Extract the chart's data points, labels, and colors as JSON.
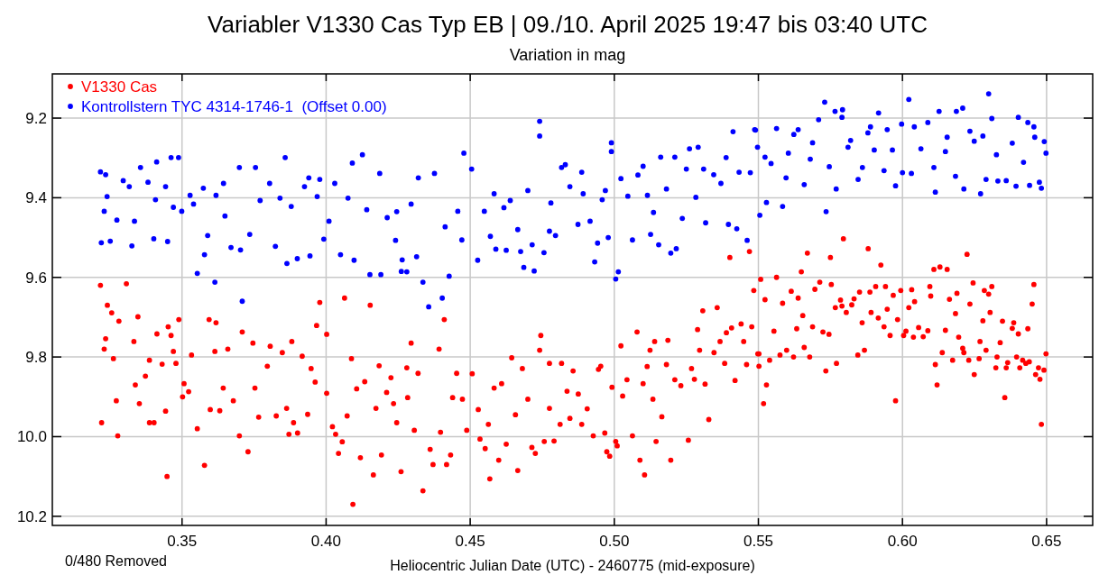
{
  "chart_data": {
    "type": "scatter",
    "title": "Variabler V1330 Cas Typ EB | 09./10. April 2025 19:47 bis 03:40 UTC",
    "subtitle": "Variation in mag",
    "xlabel": "Heliocentric Julian Date (UTC) - 2460775 (mid-exposure)",
    "annotations": [
      "0/480 Removed"
    ],
    "xlim": [
      0.305,
      0.666
    ],
    "xticks": [
      0.35,
      {
        "value": 0.4,
        "label": "0.40"
      },
      0.45,
      {
        "value": 0.5,
        "label": "0.50"
      },
      0.55,
      {
        "value": 0.6,
        "label": "0.60"
      },
      0.65
    ],
    "ylim": [
      10.223,
      9.089
    ],
    "yticks": [
      9.2,
      9.4,
      9.6,
      9.8,
      {
        "value": 10,
        "label": "10.0"
      },
      10.2
    ],
    "grid": true,
    "legend": "top left",
    "marker": "circle",
    "series": [
      {
        "name": "V1330 Cas",
        "color": "#ff0000",
        "x": [
          0.3217,
          0.3221,
          0.3307,
          0.3241,
          0.3256,
          0.3235,
          0.323,
          0.3262,
          0.3281,
          0.3272,
          0.3277,
          0.3333,
          0.3347,
          0.3338,
          0.3352,
          0.3373,
          0.3387,
          0.3387,
          0.3403,
          0.3413,
          0.3431,
          0.3448,
          0.3452,
          0.3462,
          0.347,
          0.3479,
          0.3489,
          0.3443,
          0.3502,
          0.3507,
          0.3523,
          0.3533,
          0.3553,
          0.3578,
          0.3594,
          0.3618,
          0.3614,
          0.3598,
          0.3631,
          0.3643,
          0.3659,
          0.3678,
          0.3699,
          0.3709,
          0.3729,
          0.3746,
          0.3753,
          0.3766,
          0.3796,
          0.3806,
          0.3827,
          0.3848,
          0.3863,
          0.3871,
          0.3881,
          0.3887,
          0.3901,
          0.3917,
          0.3936,
          0.3948,
          0.3962,
          0.3967,
          0.3978,
          0.4002,
          0.4002,
          0.4022,
          0.4033,
          0.4043,
          0.4056,
          0.4064,
          0.4073,
          0.4088,
          0.4093,
          0.4106,
          0.4119,
          0.4134,
          0.4153,
          0.4164,
          0.4173,
          0.4184,
          0.4192,
          0.421,
          0.4225,
          0.4234,
          0.4245,
          0.426,
          0.4283,
          0.4295,
          0.428,
          0.4306,
          0.4319,
          0.4336,
          0.4361,
          0.4371,
          0.4392,
          0.4397,
          0.441,
          0.4418,
          0.4432,
          0.4439,
          0.4453,
          0.4473,
          0.4488,
          0.4507,
          0.4528,
          0.4534,
          0.4552,
          0.4563,
          0.4568,
          0.4583,
          0.4599,
          0.4609,
          0.4625,
          0.4644,
          0.4657,
          0.4665,
          0.4681,
          0.47,
          0.4714,
          0.4726,
          0.4741,
          0.4745,
          0.4757,
          0.4775,
          0.4775,
          0.4791,
          0.4812,
          0.4817,
          0.4836,
          0.4846,
          0.4857,
          0.4875,
          0.4887,
          0.4906,
          0.4927,
          0.4945,
          0.4953,
          0.4967,
          0.4974,
          0.4984,
          0.4992,
          0.5005,
          0.501,
          0.5023,
          0.5029,
          0.5044,
          0.5063,
          0.5079,
          0.5089,
          0.51,
          0.5105,
          0.5114,
          0.5124,
          0.5134,
          0.514,
          0.5145,
          0.5165,
          0.5181,
          0.5186,
          0.5196,
          0.521,
          0.5231,
          0.5257,
          0.5268,
          0.5278,
          0.5289,
          0.5296,
          0.5307,
          0.5315,
          0.5328,
          0.5346,
          0.5357,
          0.5367,
          0.5383,
          0.5389,
          0.5401,
          0.5407,
          0.5419,
          0.544,
          0.5449,
          0.5459,
          0.5469,
          0.5477,
          0.5484,
          0.5498,
          0.5502,
          0.5502,
          0.5508,
          0.5518,
          0.5528,
          0.5523,
          0.5539,
          0.5554,
          0.5563,
          0.5575,
          0.5584,
          0.5598,
          0.5614,
          0.5622,
          0.5633,
          0.5638,
          0.5649,
          0.5654,
          0.5659,
          0.567,
          0.5678,
          0.5688,
          0.5696,
          0.5713,
          0.5724,
          0.5734,
          0.5745,
          0.575,
          0.5753,
          0.5767,
          0.5771,
          0.5785,
          0.579,
          0.5795,
          0.5805,
          0.5824,
          0.5832,
          0.5845,
          0.5851,
          0.586,
          0.5868,
          0.5881,
          0.5887,
          0.5891,
          0.5907,
          0.5916,
          0.5925,
          0.5936,
          0.5941,
          0.5947,
          0.5957,
          0.5968,
          0.5976,
          0.5983,
          0.5994,
          0.6004,
          0.6012,
          0.6022,
          0.6032,
          0.6038,
          0.6042,
          0.6056,
          0.6072,
          0.6088,
          0.6095,
          0.6098,
          0.6109,
          0.6114,
          0.612,
          0.613,
          0.6138,
          0.6149,
          0.6155,
          0.6163,
          0.6174,
          0.6184,
          0.6189,
          0.6195,
          0.6209,
          0.6213,
          0.6224,
          0.623,
          0.6234,
          0.6245,
          0.6249,
          0.6266,
          0.6269,
          0.6279,
          0.6284,
          0.629,
          0.6299,
          0.6304,
          0.631,
          0.6324,
          0.6328,
          0.6339,
          0.6347,
          0.6355,
          0.636,
          0.6365,
          0.6381,
          0.6386,
          0.6396,
          0.6402,
          0.6407,
          0.6417,
          0.6428,
          0.6435,
          0.644,
          0.645,
          0.6456,
          0.6462,
          0.6472,
          0.6477,
          0.6482,
          0.6491,
          0.6498
        ],
        "values": [
          9.62,
          9.965,
          9.616,
          9.67,
          9.689,
          9.754,
          9.78,
          9.804,
          9.71,
          9.91,
          9.998,
          9.761,
          9.699,
          9.87,
          9.917,
          9.848,
          9.808,
          9.965,
          9.965,
          9.742,
          9.818,
          10.1,
          9.724,
          9.746,
          9.786,
          9.816,
          9.706,
          9.936,
          9.9,
          9.867,
          9.887,
          9.795,
          9.98,
          10.072,
          9.706,
          9.714,
          9.786,
          9.932,
          9.935,
          9.878,
          9.78,
          9.91,
          9.998,
          9.737,
          10.038,
          9.765,
          9.878,
          9.951,
          9.823,
          9.773,
          9.948,
          9.789,
          9.929,
          9.994,
          9.761,
          9.965,
          9.991,
          9.798,
          9.944,
          9.829,
          9.863,
          9.721,
          9.663,
          9.743,
          9.891,
          9.975,
          9.994,
          10.042,
          10.013,
          9.652,
          9.948,
          9.804,
          10.17,
          9.88,
          10.053,
          9.862,
          9.67,
          10.096,
          9.929,
          9.822,
          10.046,
          9.889,
          9.852,
          9.917,
          9.965,
          10.088,
          9.902,
          9.765,
          9.827,
          9.984,
          9.841,
          10.136,
          10.032,
          10.07,
          9.78,
          9.989,
          9.706,
          10.07,
          10.046,
          9.902,
          9.841,
          9.906,
          9.984,
          9.842,
          9.932,
          10.006,
          10.03,
          9.969,
          10.106,
          9.878,
          10.059,
          9.867,
          10.019,
          9.802,
          9.945,
          10.085,
          9.829,
          9.906,
          10.027,
          10.042,
          9.783,
          9.746,
          10.012,
          9.816,
          9.929,
          10.011,
          9.969,
          9.816,
          9.886,
          9.954,
          9.835,
          9.893,
          9.969,
          9.93,
          9.998,
          9.831,
          9.823,
          9.991,
          10.038,
          10.049,
          9.876,
          10.012,
          10.023,
          9.772,
          9.898,
          9.857,
          9.998,
          9.737,
          10.059,
          9.867,
          10.096,
          9.824,
          9.783,
          9.906,
          9.761,
          10.012,
          9.95,
          9.819,
          9.758,
          10.059,
          9.857,
          9.872,
          10.009,
          9.829,
          9.856,
          9.731,
          9.783,
          9.684,
          9.868,
          9.957,
          9.789,
          9.676,
          9.761,
          9.816,
          9.739,
          9.55,
          9.727,
          9.859,
          9.717,
          9.761,
          9.819,
          9.535,
          9.724,
          9.633,
          9.792,
          9.792,
          9.823,
          9.605,
          9.917,
          9.87,
          9.656,
          9.808,
          9.735,
          9.6,
          9.795,
          9.665,
          9.783,
          9.635,
          9.8,
          9.729,
          9.652,
          9.586,
          9.696,
          9.776,
          9.539,
          9.8,
          9.724,
          9.63,
          9.612,
          9.737,
          9.835,
          9.743,
          9.55,
          9.618,
          9.676,
          9.816,
          9.657,
          9.672,
          9.503,
          9.688,
          9.669,
          9.654,
          9.795,
          9.637,
          9.714,
          9.783,
          9.528,
          9.637,
          9.688,
          9.623,
          9.702,
          9.569,
          9.724,
          9.623,
          9.68,
          9.746,
          9.645,
          9.91,
          9.706,
          9.633,
          9.746,
          9.735,
          9.676,
          9.631,
          9.75,
          9.661,
          9.726,
          9.749,
          9.734,
          9.623,
          9.647,
          9.58,
          9.819,
          9.87,
          9.574,
          9.789,
          9.733,
          9.58,
          9.655,
          9.808,
          9.691,
          9.64,
          9.75,
          9.778,
          9.789,
          9.542,
          9.808,
          9.667,
          9.614,
          9.844,
          9.804,
          9.761,
          9.709,
          9.633,
          9.783,
          9.642,
          9.688,
          9.623,
          9.827,
          9.8,
          9.764,
          9.71,
          9.902,
          9.827,
          9.814,
          9.728,
          9.714,
          9.8,
          9.742,
          9.827,
          9.808,
          9.816,
          9.729,
          9.812,
          9.667,
          9.618,
          9.844,
          9.827,
          9.856,
          9.969,
          9.833,
          9.792
        ]
      },
      {
        "name": "Kontrollstern TYC 4314-1746-1  (Offset 0.00)",
        "color": "#0000ff",
        "x": [
          0.3217,
          0.3235,
          0.322,
          0.3251,
          0.323,
          0.324,
          0.3274,
          0.3296,
          0.3317,
          0.3326,
          0.3356,
          0.3335,
          0.3382,
          0.3402,
          0.3412,
          0.3408,
          0.3443,
          0.345,
          0.3462,
          0.3488,
          0.347,
          0.3499,
          0.3553,
          0.3528,
          0.354,
          0.3574,
          0.3578,
          0.3589,
          0.3614,
          0.3618,
          0.3644,
          0.3649,
          0.367,
          0.3699,
          0.3703,
          0.3709,
          0.3735,
          0.3755,
          0.3771,
          0.3804,
          0.3824,
          0.384,
          0.3858,
          0.3864,
          0.3879,
          0.39,
          0.3925,
          0.394,
          0.3944,
          0.3969,
          0.3978,
          0.3992,
          0.401,
          0.403,
          0.405,
          0.4076,
          0.4091,
          0.4097,
          0.4126,
          0.4141,
          0.4152,
          0.4186,
          0.419,
          0.4212,
          0.4241,
          0.4261,
          0.4245,
          0.4264,
          0.428,
          0.4295,
          0.432,
          0.4314,
          0.4336,
          0.4356,
          0.4376,
          0.4403,
          0.4413,
          0.4427,
          0.4457,
          0.4478,
          0.4471,
          0.4505,
          0.4526,
          0.4549,
          0.457,
          0.4583,
          0.4589,
          0.4617,
          0.4625,
          0.4639,
          0.4665,
          0.4675,
          0.4686,
          0.47,
          0.4715,
          0.4722,
          0.4741,
          0.4741,
          0.4756,
          0.4775,
          0.478,
          0.4796,
          0.4817,
          0.483,
          0.4846,
          0.4874,
          0.4887,
          0.4892,
          0.4916,
          0.4932,
          0.4942,
          0.4958,
          0.4969,
          0.4979,
          0.499,
          0.499,
          0.5005,
          0.5014,
          0.5023,
          0.5047,
          0.5063,
          0.5082,
          0.51,
          0.5115,
          0.5126,
          0.5136,
          0.5154,
          0.5161,
          0.5181,
          0.5196,
          0.521,
          0.5215,
          0.5236,
          0.525,
          0.5261,
          0.5283,
          0.5291,
          0.531,
          0.5317,
          0.5345,
          0.537,
          0.5388,
          0.5396,
          0.5412,
          0.5425,
          0.5433,
          0.5461,
          0.5472,
          0.549,
          0.5487,
          0.5497,
          0.5505,
          0.5523,
          0.5528,
          0.5563,
          0.5584,
          0.5544,
          0.5596,
          0.5604,
          0.5623,
          0.5638,
          0.5659,
          0.568,
          0.5688,
          0.5709,
          0.573,
          0.5735,
          0.5746,
          0.5766,
          0.577,
          0.5792,
          0.579,
          0.5811,
          0.582,
          0.5846,
          0.5861,
          0.588,
          0.5889,
          0.5902,
          0.5917,
          0.5936,
          0.5947,
          0.5965,
          0.5976,
          0.5997,
          0.6,
          0.6022,
          0.6031,
          0.6041,
          0.6064,
          0.6088,
          0.6109,
          0.6114,
          0.6127,
          0.6149,
          0.6155,
          0.6184,
          0.6187,
          0.6209,
          0.6213,
          0.6234,
          0.6249,
          0.6271,
          0.6279,
          0.629,
          0.6299,
          0.631,
          0.6326,
          0.6331,
          0.636,
          0.6381,
          0.6394,
          0.6402,
          0.642,
          0.6435,
          0.6441,
          0.6456,
          0.6459,
          0.6475,
          0.6482,
          0.6492,
          0.6498
        ],
        "values": [
          9.335,
          9.342,
          9.513,
          9.509,
          9.434,
          9.397,
          9.456,
          9.357,
          9.372,
          9.521,
          9.324,
          9.459,
          9.361,
          9.503,
          9.31,
          9.405,
          9.372,
          9.51,
          9.299,
          9.299,
          9.424,
          9.434,
          9.59,
          9.394,
          9.416,
          9.376,
          9.543,
          9.495,
          9.612,
          9.394,
          9.364,
          9.446,
          9.525,
          9.324,
          9.531,
          9.66,
          9.492,
          9.324,
          9.407,
          9.364,
          9.522,
          9.401,
          9.299,
          9.565,
          9.422,
          9.553,
          9.372,
          9.35,
          9.546,
          9.397,
          9.354,
          9.504,
          9.459,
          9.364,
          9.543,
          9.401,
          9.313,
          9.557,
          9.292,
          9.43,
          9.593,
          9.339,
          9.593,
          9.45,
          9.507,
          9.585,
          9.435,
          9.556,
          9.586,
          9.416,
          9.35,
          9.548,
          9.612,
          9.674,
          9.339,
          9.652,
          9.473,
          9.597,
          9.434,
          9.288,
          9.506,
          9.328,
          9.557,
          9.434,
          9.497,
          9.39,
          9.529,
          9.425,
          9.532,
          9.407,
          9.48,
          9.535,
          9.575,
          9.382,
          9.518,
          9.584,
          9.208,
          9.245,
          9.538,
          9.484,
          9.413,
          9.495,
          9.324,
          9.317,
          9.372,
          9.467,
          9.336,
          9.39,
          9.459,
          9.561,
          9.514,
          9.405,
          9.382,
          9.5,
          9.262,
          9.284,
          9.604,
          9.586,
          9.352,
          9.396,
          9.506,
          9.343,
          9.321,
          9.394,
          9.492,
          9.437,
          9.518,
          9.298,
          9.378,
          9.539,
          9.298,
          9.528,
          9.452,
          9.328,
          9.277,
          9.399,
          9.273,
          9.328,
          9.463,
          9.342,
          9.364,
          9.299,
          9.467,
          9.234,
          9.478,
          9.336,
          9.507,
          9.337,
          9.23,
          9.229,
          9.273,
          9.444,
          9.298,
          9.412,
          9.226,
          9.422,
          9.314,
          9.35,
          9.288,
          9.241,
          9.229,
          9.367,
          9.303,
          9.262,
          9.204,
          9.16,
          9.435,
          9.322,
          9.183,
          9.378,
          9.179,
          9.198,
          9.273,
          9.256,
          9.354,
          9.324,
          9.237,
          9.222,
          9.28,
          9.187,
          9.332,
          9.229,
          9.28,
          9.37,
          9.215,
          9.337,
          9.153,
          9.339,
          9.222,
          9.277,
          9.211,
          9.324,
          9.386,
          9.183,
          9.284,
          9.248,
          9.346,
          9.183,
          9.175,
          9.378,
          9.233,
          9.258,
          9.39,
          9.245,
          9.354,
          9.139,
          9.201,
          9.292,
          9.358,
          9.357,
          9.263,
          9.371,
          9.198,
          9.311,
          9.211,
          9.369,
          9.222,
          9.248,
          9.361,
          9.376,
          9.259,
          9.288
        ]
      }
    ]
  }
}
